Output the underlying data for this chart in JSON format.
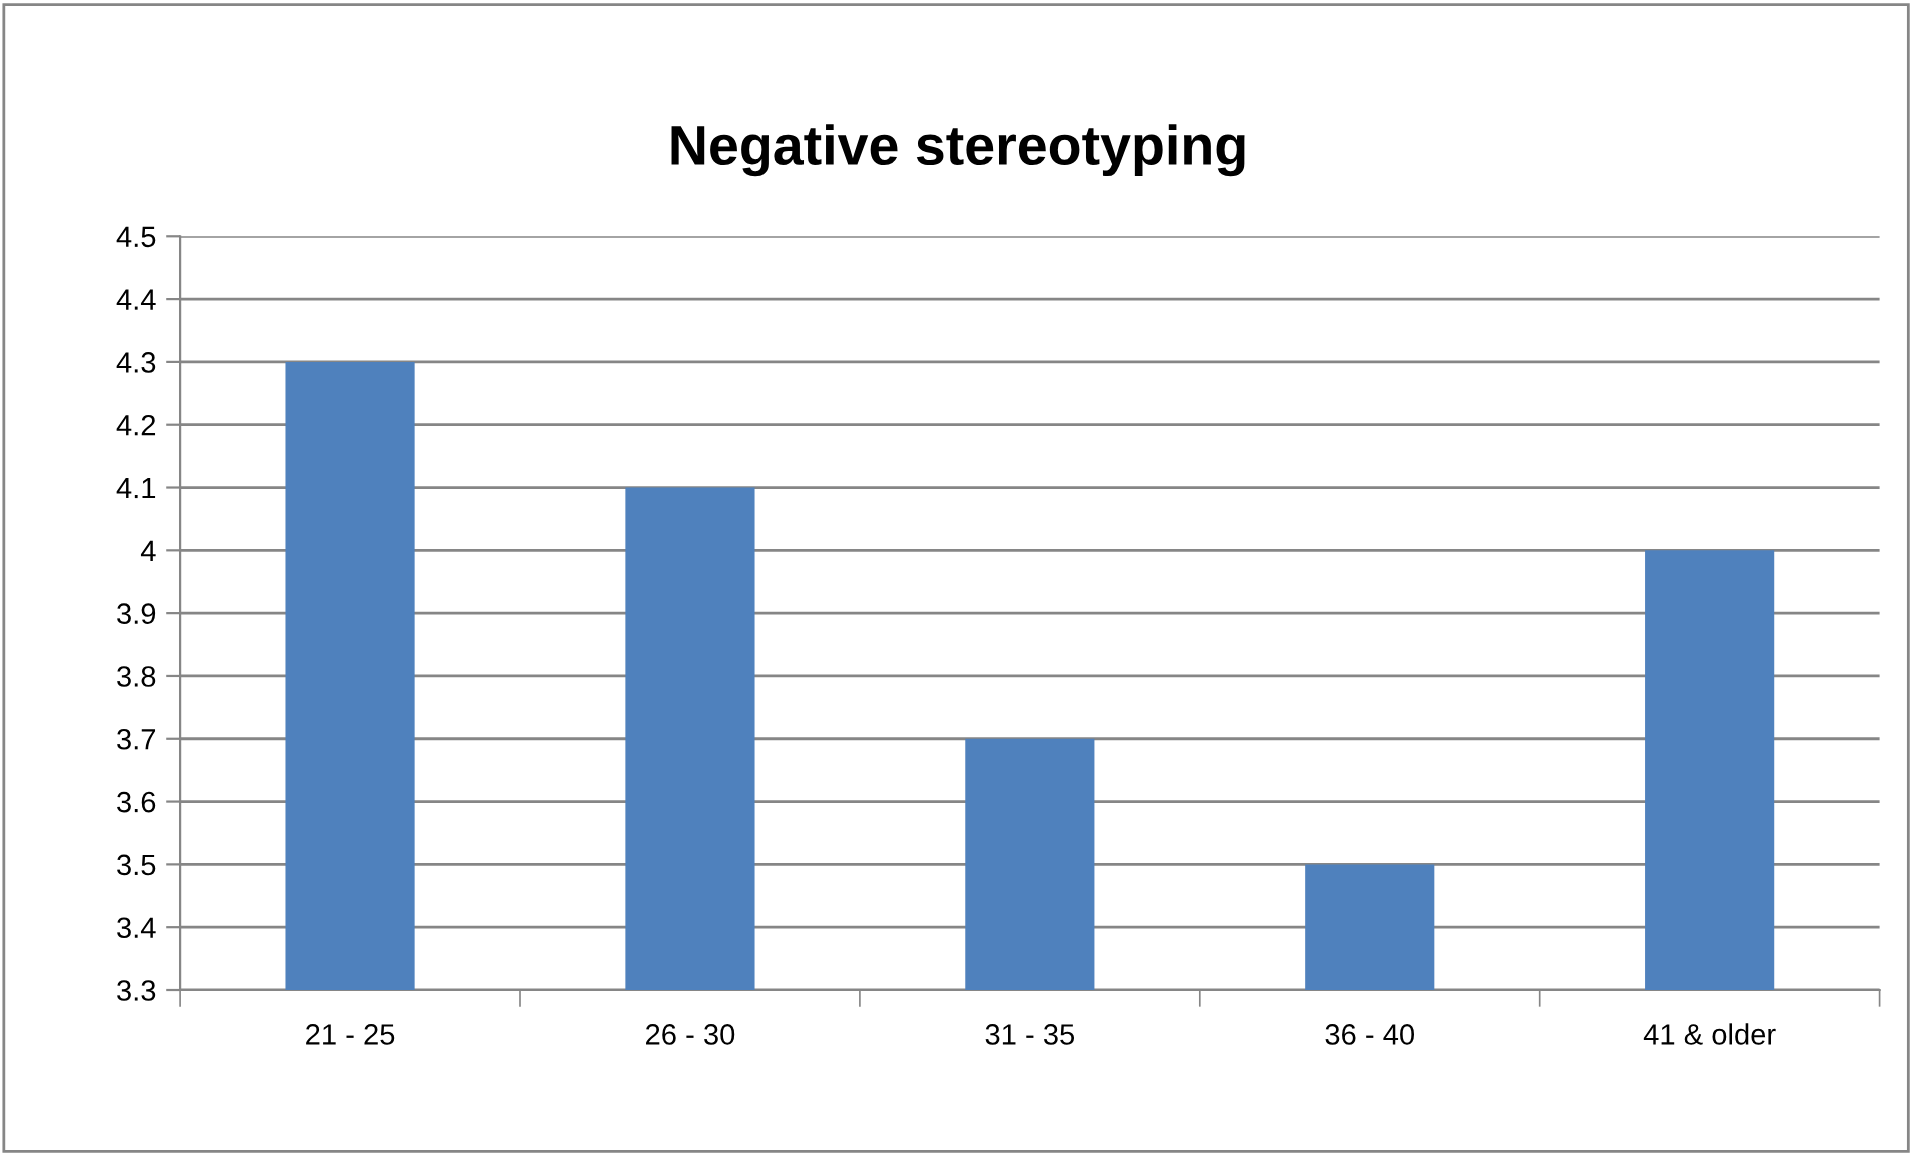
{
  "chart_data": {
    "type": "bar",
    "title": "Negative stereotyping",
    "categories": [
      "21 - 25",
      "26 - 30",
      "31 - 35",
      "36 - 40",
      "41 & older"
    ],
    "values": [
      4.3,
      4.1,
      3.7,
      3.5,
      4
    ],
    "color": "#4f81bd",
    "ylim": [
      3.3,
      4.5
    ],
    "yticks": [
      3.3,
      3.4,
      3.5,
      3.6,
      3.7,
      3.8,
      3.9,
      4,
      4.1,
      4.2,
      4.3,
      4.4,
      4.5
    ],
    "grid": "y",
    "legend": false
  }
}
